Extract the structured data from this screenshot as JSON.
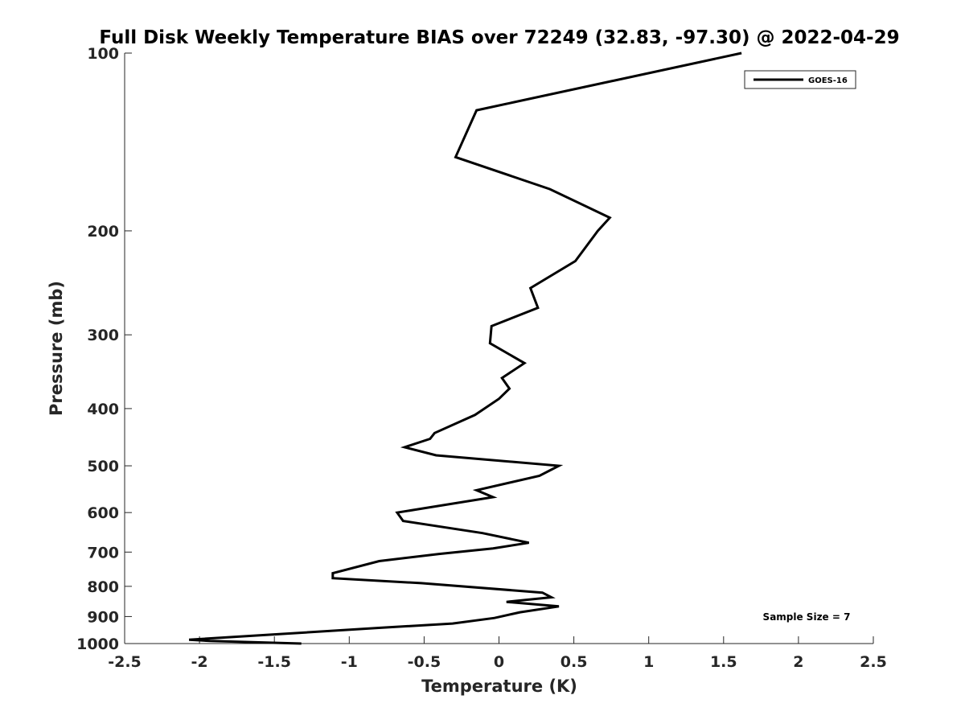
{
  "chart_data": {
    "type": "line",
    "title": "Full Disk Weekly Temperature BIAS over 72249 (32.83, -97.30) @ 2022-04-29",
    "xlabel": "Temperature (K)",
    "ylabel": "Pressure (mb)",
    "xlim": [
      -2.5,
      2.5
    ],
    "ylim": [
      100,
      1000
    ],
    "y_scale": "log",
    "y_reversed": true,
    "x_ticks": [
      "-2.5",
      "-2",
      "-1.5",
      "-1",
      "-0.5",
      "0",
      "0.5",
      "1",
      "1.5",
      "2",
      "2.5"
    ],
    "y_ticks": [
      "100",
      "200",
      "300",
      "400",
      "500",
      "600",
      "700",
      "800",
      "900",
      "1000"
    ],
    "grid": false,
    "legend_position": "top-right",
    "series": [
      {
        "name": "GOES-16",
        "color": "#000000",
        "points": [
          {
            "x": 1.62,
            "p": 100
          },
          {
            "x": -0.15,
            "p": 125
          },
          {
            "x": -0.29,
            "p": 150
          },
          {
            "x": 0.34,
            "p": 170
          },
          {
            "x": 0.74,
            "p": 190
          },
          {
            "x": 0.66,
            "p": 200
          },
          {
            "x": 0.51,
            "p": 225
          },
          {
            "x": 0.21,
            "p": 250
          },
          {
            "x": 0.26,
            "p": 270
          },
          {
            "x": -0.05,
            "p": 290
          },
          {
            "x": -0.06,
            "p": 310
          },
          {
            "x": 0.17,
            "p": 335
          },
          {
            "x": 0.02,
            "p": 355
          },
          {
            "x": 0.07,
            "p": 370
          },
          {
            "x": 0.0,
            "p": 385
          },
          {
            "x": -0.16,
            "p": 410
          },
          {
            "x": -0.43,
            "p": 440
          },
          {
            "x": -0.46,
            "p": 450
          },
          {
            "x": -0.63,
            "p": 465
          },
          {
            "x": -0.42,
            "p": 480
          },
          {
            "x": 0.4,
            "p": 500
          },
          {
            "x": 0.27,
            "p": 520
          },
          {
            "x": -0.15,
            "p": 550
          },
          {
            "x": -0.04,
            "p": 565
          },
          {
            "x": -0.68,
            "p": 600
          },
          {
            "x": -0.64,
            "p": 620
          },
          {
            "x": -0.11,
            "p": 650
          },
          {
            "x": 0.2,
            "p": 675
          },
          {
            "x": -0.04,
            "p": 690
          },
          {
            "x": -0.4,
            "p": 705
          },
          {
            "x": -0.8,
            "p": 725
          },
          {
            "x": -1.11,
            "p": 760
          },
          {
            "x": -1.11,
            "p": 775
          },
          {
            "x": -0.52,
            "p": 790
          },
          {
            "x": 0.29,
            "p": 820
          },
          {
            "x": 0.35,
            "p": 835
          },
          {
            "x": 0.05,
            "p": 850
          },
          {
            "x": 0.4,
            "p": 865
          },
          {
            "x": 0.14,
            "p": 885
          },
          {
            "x": -0.03,
            "p": 905
          },
          {
            "x": -0.31,
            "p": 925
          },
          {
            "x": -0.78,
            "p": 940
          },
          {
            "x": -1.5,
            "p": 965
          },
          {
            "x": -2.07,
            "p": 985
          },
          {
            "x": -1.93,
            "p": 990
          },
          {
            "x": -1.32,
            "p": 1000
          }
        ]
      }
    ],
    "annotation": "Sample Size = 7"
  }
}
